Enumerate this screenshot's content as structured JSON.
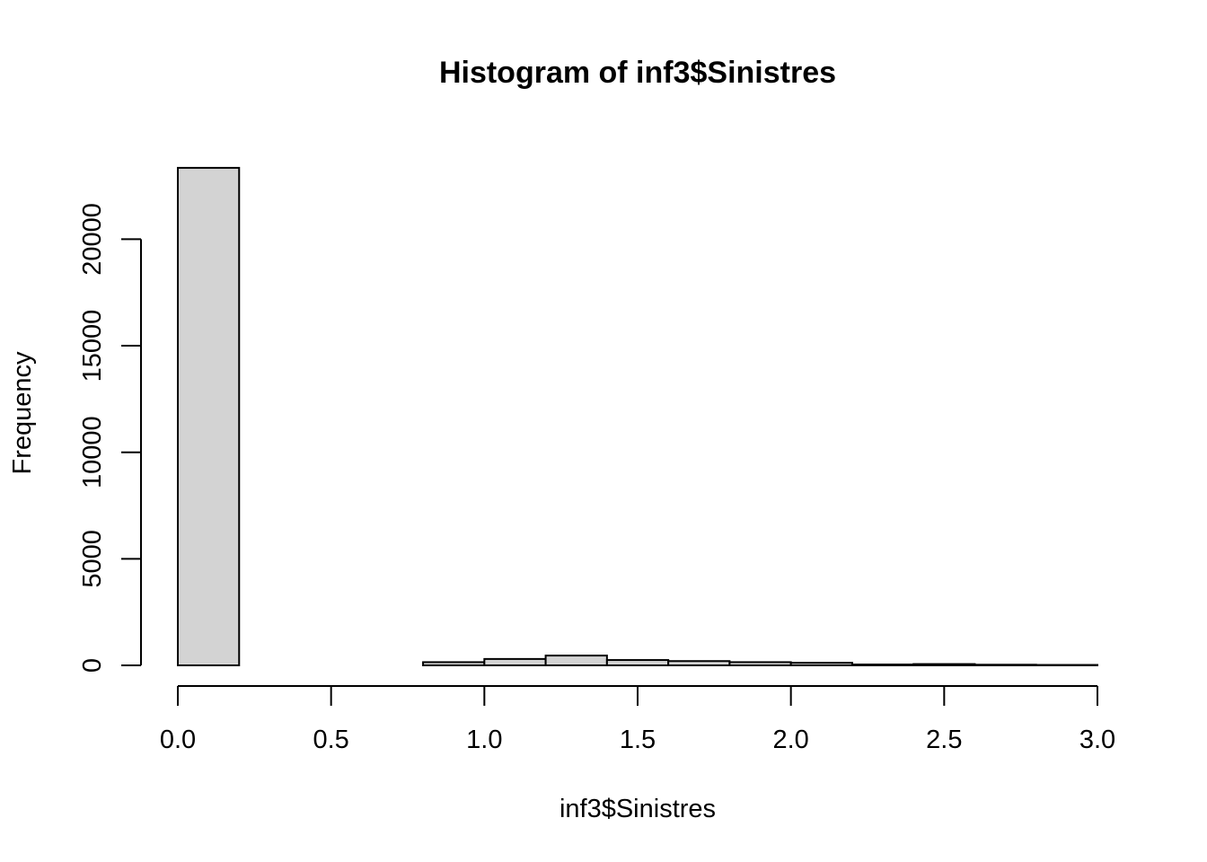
{
  "chart_data": {
    "type": "bar",
    "title": "Histogram of inf3$Sinistres",
    "xlabel": "inf3$Sinistres",
    "ylabel": "Frequency",
    "bin_edges": [
      0.0,
      0.2,
      0.4,
      0.6,
      0.8,
      1.0,
      1.2,
      1.4,
      1.6,
      1.8,
      2.0,
      2.2,
      2.4,
      2.6,
      2.8,
      3.0
    ],
    "values": [
      23350,
      0,
      0,
      0,
      150,
      300,
      460,
      250,
      200,
      150,
      120,
      40,
      60,
      30,
      20
    ],
    "xlim": [
      0.0,
      3.0
    ],
    "ylim": [
      0,
      24400
    ],
    "x_ticks": [
      0.0,
      0.5,
      1.0,
      1.5,
      2.0,
      2.5,
      3.0
    ],
    "x_tick_labels": [
      "0.0",
      "0.5",
      "1.0",
      "1.5",
      "2.0",
      "2.5",
      "3.0"
    ],
    "y_ticks": [
      0,
      5000,
      10000,
      15000,
      20000
    ],
    "y_tick_labels": [
      "0",
      "5000",
      "10000",
      "15000",
      "20000"
    ],
    "bar_color": "#d3d3d3",
    "grid": false,
    "legend": "none"
  }
}
